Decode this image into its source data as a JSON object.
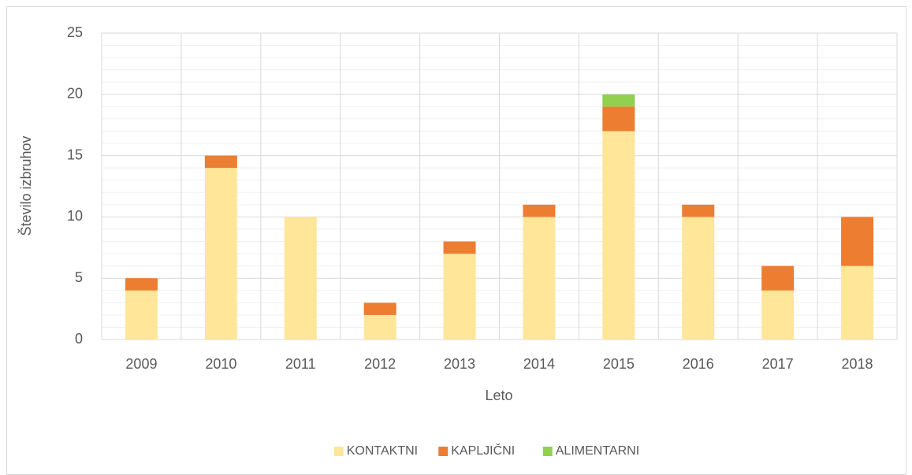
{
  "chart_data": {
    "type": "stacked_bar",
    "ylabel": "Število izbruhov",
    "xlabel": "Leto",
    "categories": [
      "2009",
      "2010",
      "2011",
      "2012",
      "2013",
      "2014",
      "2015",
      "2016",
      "2017",
      "2018"
    ],
    "series": [
      {
        "name": "KONTAKTNI",
        "color": "#ffe699",
        "values": [
          4,
          14,
          10,
          2,
          7,
          10,
          17,
          10,
          4,
          6
        ]
      },
      {
        "name": "KAPLJIČNI",
        "color": "#ed7d31",
        "values": [
          1,
          1,
          0,
          1,
          1,
          1,
          2,
          1,
          2,
          4
        ]
      },
      {
        "name": "ALIMENTARNI",
        "color": "#92d050",
        "values": [
          0,
          0,
          0,
          0,
          0,
          0,
          1,
          0,
          0,
          0
        ]
      }
    ],
    "ylim": [
      0,
      25
    ],
    "yticks": [
      0,
      5,
      10,
      15,
      20,
      25
    ],
    "grid": true,
    "minor_grid": true,
    "legend": "bottom"
  }
}
